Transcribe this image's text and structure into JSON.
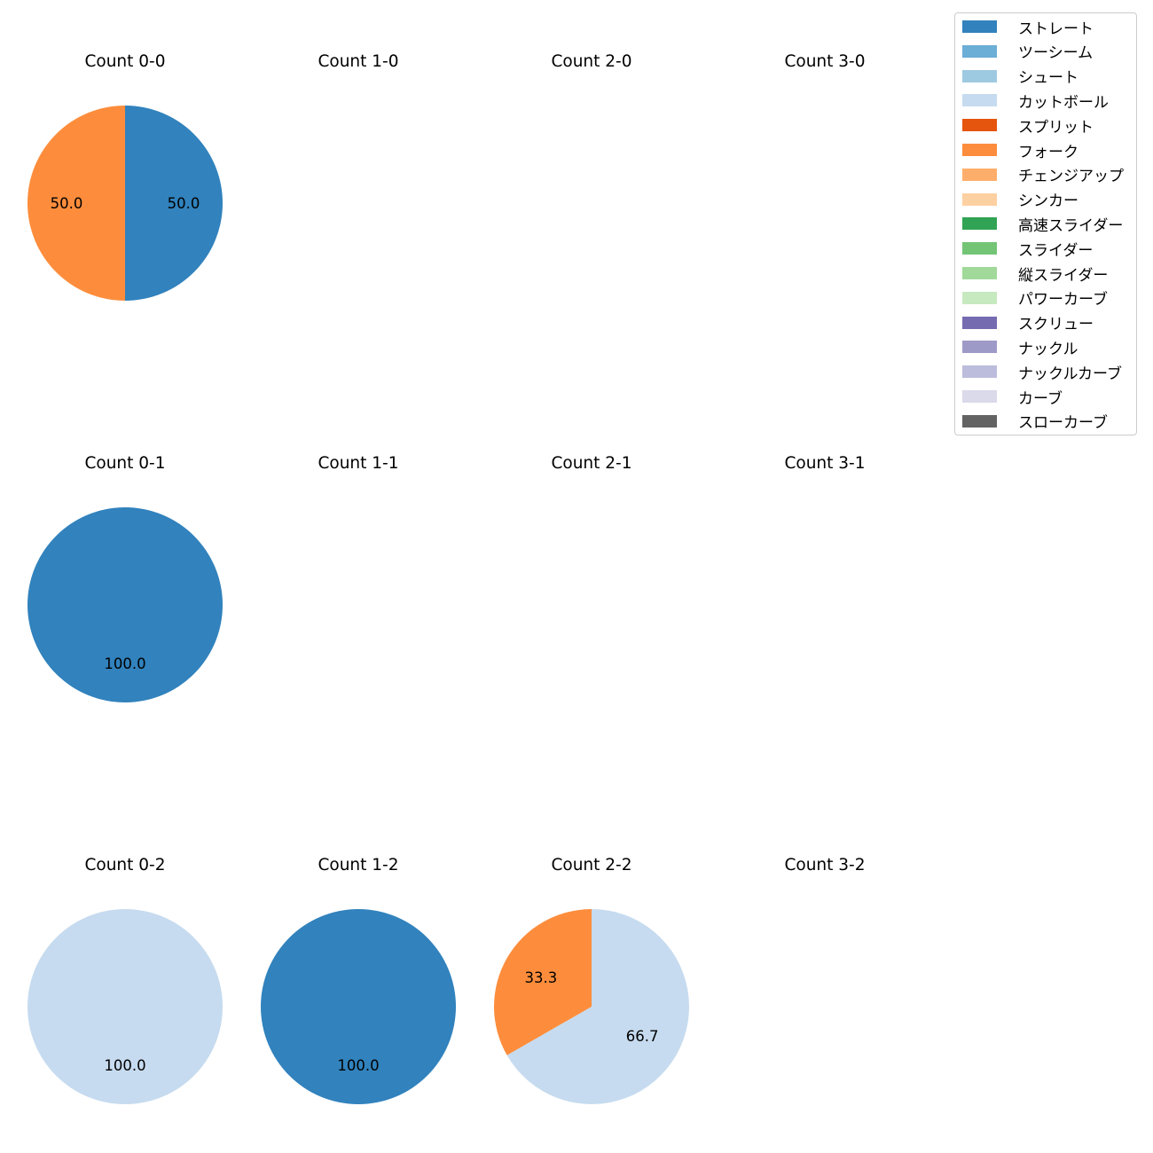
{
  "chart_data": {
    "type": "pie",
    "legend": {
      "placement": "top-right",
      "entries": [
        {
          "label": "ストレート",
          "color": "#3182bd"
        },
        {
          "label": "ツーシーム",
          "color": "#6baed6"
        },
        {
          "label": "シュート",
          "color": "#9ecae1"
        },
        {
          "label": "カットボール",
          "color": "#c6dbef"
        },
        {
          "label": "スプリット",
          "color": "#e6550d"
        },
        {
          "label": "フォーク",
          "color": "#fd8d3c"
        },
        {
          "label": "チェンジアップ",
          "color": "#fdae6b"
        },
        {
          "label": "シンカー",
          "color": "#fdd0a2"
        },
        {
          "label": "高速スライダー",
          "color": "#31a354"
        },
        {
          "label": "スライダー",
          "color": "#74c476"
        },
        {
          "label": "縦スライダー",
          "color": "#a1d99b"
        },
        {
          "label": "パワーカーブ",
          "color": "#c7e9c0"
        },
        {
          "label": "スクリュー",
          "color": "#756bb1"
        },
        {
          "label": "ナックル",
          "color": "#9e9ac8"
        },
        {
          "label": "ナックルカーブ",
          "color": "#bcbddc"
        },
        {
          "label": "カーブ",
          "color": "#dadaeb"
        },
        {
          "label": "スローカーブ",
          "color": "#636363"
        }
      ]
    },
    "subplots": [
      {
        "title": "Count 0-0",
        "slices": [
          {
            "pitch": "ストレート",
            "value": 50.0,
            "label": "50.0"
          },
          {
            "pitch": "フォーク",
            "value": 50.0,
            "label": "50.0"
          }
        ]
      },
      {
        "title": "Count 1-0",
        "slices": []
      },
      {
        "title": "Count 2-0",
        "slices": []
      },
      {
        "title": "Count 3-0",
        "slices": []
      },
      {
        "title": "Count 0-1",
        "slices": [
          {
            "pitch": "ストレート",
            "value": 100.0,
            "label": "100.0"
          }
        ]
      },
      {
        "title": "Count 1-1",
        "slices": []
      },
      {
        "title": "Count 2-1",
        "slices": []
      },
      {
        "title": "Count 3-1",
        "slices": []
      },
      {
        "title": "Count 0-2",
        "slices": [
          {
            "pitch": "カットボール",
            "value": 100.0,
            "label": "100.0"
          }
        ]
      },
      {
        "title": "Count 1-2",
        "slices": [
          {
            "pitch": "ストレート",
            "value": 100.0,
            "label": "100.0"
          }
        ]
      },
      {
        "title": "Count 2-2",
        "slices": [
          {
            "pitch": "カットボール",
            "value": 66.7,
            "label": "66.7"
          },
          {
            "pitch": "フォーク",
            "value": 33.3,
            "label": "33.3"
          }
        ]
      },
      {
        "title": "Count 3-2",
        "slices": []
      }
    ],
    "start_angle": 90,
    "direction": "clockwise"
  }
}
